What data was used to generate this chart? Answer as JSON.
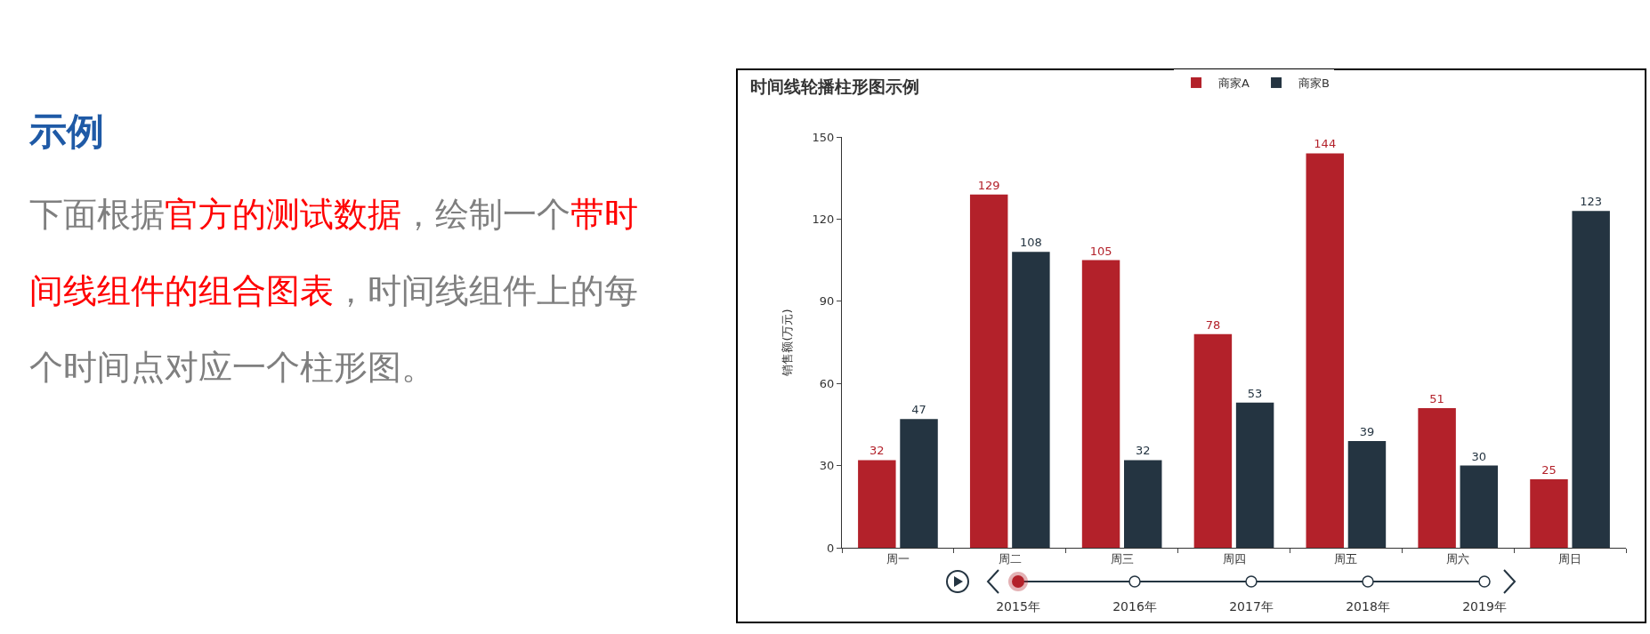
{
  "chart_data": {
    "type": "bar",
    "title": "时间线轮播柱形图示例",
    "ylabel": "销售额(万元)",
    "categories": [
      "周一",
      "周二",
      "周三",
      "周四",
      "周五",
      "周六",
      "周日"
    ],
    "series": [
      {
        "name": "商家A",
        "color": "#b3212a",
        "values": [
          32,
          129,
          105,
          78,
          144,
          51,
          25
        ]
      },
      {
        "name": "商家B",
        "color": "#243441",
        "values": [
          47,
          108,
          32,
          53,
          39,
          30,
          123
        ]
      }
    ],
    "ylim": [
      0,
      150
    ],
    "yticks": [
      0,
      30,
      60,
      90,
      120,
      150
    ],
    "grid": false,
    "legend": "top",
    "data_labels": true,
    "annotations": [
      "示例",
      "下面根据",
      "官方的测试数据",
      "，绘制一个",
      "带时间线组件的组合图表",
      "，时间线组件上的每个时间点对应一个柱形图。",
      "2015年",
      "2016年",
      "2017年",
      "2018年",
      "2019年"
    ]
  }
}
